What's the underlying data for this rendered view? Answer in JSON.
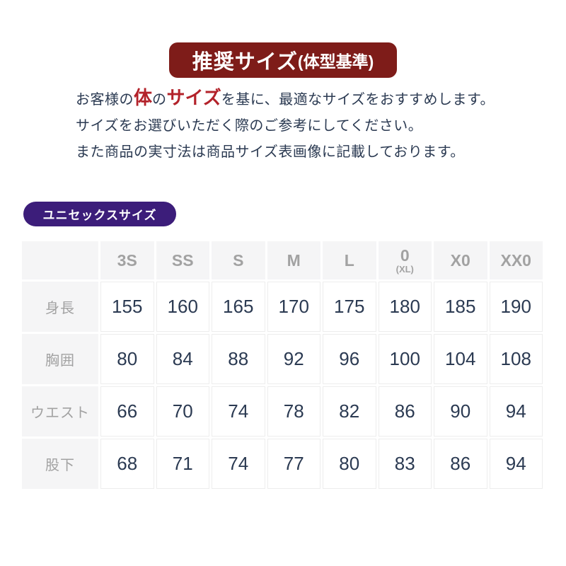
{
  "banner": {
    "title_main": "推奨サイズ",
    "title_paren": "(体型基準)"
  },
  "description": {
    "line1_parts": [
      {
        "text": "お客様の",
        "accent": false
      },
      {
        "text": "体",
        "accent": true
      },
      {
        "text": "の",
        "accent": false
      },
      {
        "text": "サイズ",
        "accent": true
      },
      {
        "text": "を基に、最適なサイズをおすすめします。",
        "accent": false
      }
    ],
    "line2": "サイズをお選びいただく際のご参考にしてください。",
    "line3": "また商品の実寸法は商品サイズ表画像に記載しております。"
  },
  "badge": {
    "label": "ユニセックスサイズ"
  },
  "size_table": {
    "columns": [
      {
        "label": "3S",
        "sub": ""
      },
      {
        "label": "SS",
        "sub": ""
      },
      {
        "label": "S",
        "sub": ""
      },
      {
        "label": "M",
        "sub": ""
      },
      {
        "label": "L",
        "sub": ""
      },
      {
        "label": "0",
        "sub": "(XL)"
      },
      {
        "label": "X0",
        "sub": ""
      },
      {
        "label": "XX0",
        "sub": ""
      }
    ],
    "rows": [
      {
        "label": "身長",
        "values": [
          "155",
          "160",
          "165",
          "170",
          "175",
          "180",
          "185",
          "190"
        ]
      },
      {
        "label": "胸囲",
        "values": [
          "80",
          "84",
          "88",
          "92",
          "96",
          "100",
          "104",
          "108"
        ]
      },
      {
        "label": "ウエスト",
        "values": [
          "66",
          "70",
          "74",
          "78",
          "82",
          "86",
          "90",
          "94"
        ]
      },
      {
        "label": "股下",
        "values": [
          "68",
          "71",
          "74",
          "77",
          "80",
          "83",
          "86",
          "94"
        ]
      }
    ]
  },
  "colors": {
    "banner_bg": "#7e1c19",
    "badge_bg": "#3c1d7a",
    "text_navy": "#2b3a52",
    "accent_red": "#b3222a",
    "table_gray_text": "#a2a2a2",
    "table_header_bg": "#f5f5f6",
    "table_border": "#ededed"
  }
}
